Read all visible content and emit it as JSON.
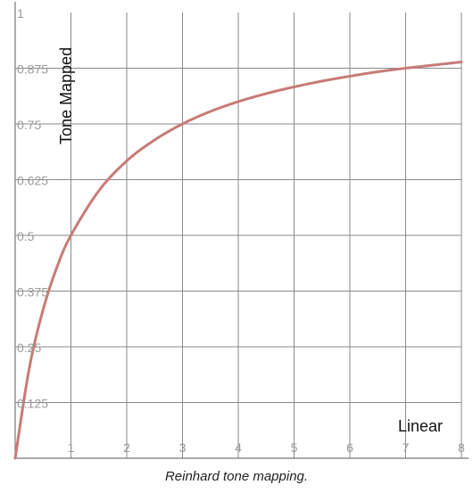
{
  "chart_data": {
    "type": "line",
    "title": "",
    "xlabel": "Linear",
    "ylabel": "Tone Mapped",
    "xlim": [
      0,
      8
    ],
    "ylim": [
      0,
      1
    ],
    "x_ticks": [
      1,
      2,
      3,
      4,
      5,
      6,
      7,
      8
    ],
    "x_tick_labels": [
      "1",
      "2",
      "3",
      "4",
      "5",
      "6",
      "7",
      "8"
    ],
    "y_ticks": [
      0.125,
      0.25,
      0.375,
      0.5,
      0.625,
      0.75,
      0.875,
      1
    ],
    "y_tick_labels": [
      "0.125",
      "0.25",
      "0.375",
      "0.5",
      "0.625",
      "0.75",
      "0.875",
      "1"
    ],
    "grid": true,
    "series": [
      {
        "color": "#c87b76",
        "x": [
          0,
          0.25,
          0.5,
          0.75,
          1,
          1.5,
          2,
          2.5,
          3,
          3.5,
          4,
          4.5,
          5,
          5.5,
          6,
          6.5,
          7,
          7.5,
          8
        ],
        "y": [
          0,
          0.2,
          0.333,
          0.429,
          0.5,
          0.6,
          0.667,
          0.714,
          0.75,
          0.778,
          0.8,
          0.818,
          0.833,
          0.846,
          0.857,
          0.867,
          0.875,
          0.882,
          0.889
        ]
      }
    ]
  },
  "caption": "Reinhard tone mapping."
}
